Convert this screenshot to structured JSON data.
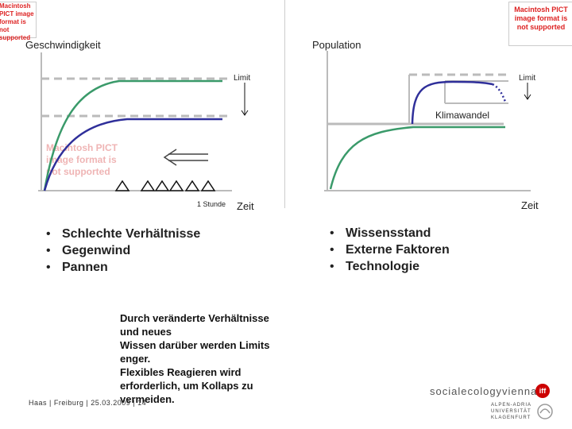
{
  "placeholders": {
    "pict_top_left": "Macintosh PICT image format is not supported",
    "pict_top_right": "Macintosh PICT image format is not supported",
    "pict_left_graph": "Macintosh PICT image format is not supported"
  },
  "left_graph": {
    "y_label": "Geschwindigkeit",
    "limit_label": "Limit",
    "hour_label": "1 Stunde",
    "x_label": "Zeit"
  },
  "right_graph": {
    "y_label": "Population",
    "limit_label": "Limit",
    "climate_label": "Klimawandel",
    "x_label": "Zeit"
  },
  "left_bullets": [
    "Schlechte Verhältnisse",
    "Gegenwind",
    "Pannen"
  ],
  "right_bullets": [
    "Wissensstand",
    "Externe Faktoren",
    "Technologie"
  ],
  "note_lines": [
    "Durch veränderte Verhältnisse",
    "und neues",
    "Wissen darüber werden Limits",
    "enger.",
    "Flexibles Reagieren wird",
    "erforderlich, um Kollaps zu",
    "vermeiden."
  ],
  "footer": "Haas | Freiburg | 25.03.2009 | 14",
  "brand": {
    "name": "socialecologyvienna",
    "iff": "iff",
    "university": [
      "ALPEN-ADRIA",
      "UNIVERSITÄT",
      "KLAGENFURT"
    ]
  },
  "colors": {
    "green": "#3a9a6a",
    "blue": "#2f2f9a",
    "red": "#d03030",
    "grey": "#bbbbbb",
    "divider": "#cccccc"
  }
}
